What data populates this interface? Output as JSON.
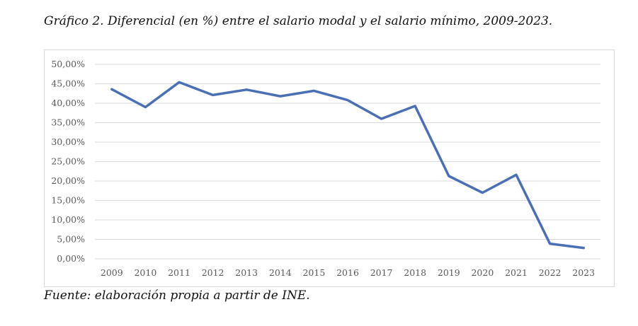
{
  "title": "Gráfico 2. Diferencial (en %) entre el salario modal y el salario mínimo, 2009-2023.",
  "source": "Fuente: elaboración propia a partir de INE.",
  "chart_data": {
    "type": "line",
    "title": "Gráfico 2. Diferencial (en %) entre el salario modal y el salario mínimo, 2009-2023.",
    "xlabel": "",
    "ylabel": "",
    "categories": [
      "2009",
      "2010",
      "2011",
      "2012",
      "2013",
      "2014",
      "2015",
      "2016",
      "2017",
      "2018",
      "2019",
      "2020",
      "2021",
      "2022",
      "2023"
    ],
    "series": [
      {
        "name": "Diferencial",
        "values": [
          43.6,
          39.0,
          45.4,
          42.1,
          43.5,
          41.8,
          43.2,
          40.8,
          36.0,
          39.3,
          21.3,
          17.0,
          21.6,
          3.9,
          2.8
        ],
        "color": "#4a6fb5"
      }
    ],
    "ylim": [
      0,
      50
    ],
    "yticks": [
      "0,00%",
      "5,00%",
      "10,00%",
      "15,00%",
      "20,00%",
      "25,00%",
      "30,00%",
      "35,00%",
      "40,00%",
      "45,00%",
      "50,00%"
    ],
    "grid": true,
    "legend": "none"
  }
}
